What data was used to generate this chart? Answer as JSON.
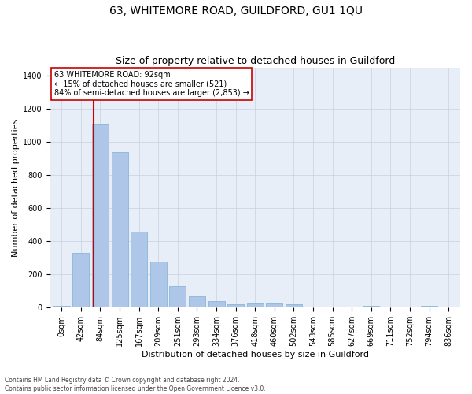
{
  "title": "63, WHITEMORE ROAD, GUILDFORD, GU1 1QU",
  "subtitle": "Size of property relative to detached houses in Guildford",
  "xlabel": "Distribution of detached houses by size in Guildford",
  "ylabel": "Number of detached properties",
  "bar_color": "#aec6e8",
  "bar_edgecolor": "#7aaed4",
  "vline_color": "#cc0000",
  "annotation_text": "63 WHITEMORE ROAD: 92sqm\n← 15% of detached houses are smaller (521)\n84% of semi-detached houses are larger (2,853) →",
  "annotation_box_edgecolor": "#cc0000",
  "background_color": "#e8eef8",
  "categories": [
    "0sqm",
    "42sqm",
    "84sqm",
    "125sqm",
    "167sqm",
    "209sqm",
    "251sqm",
    "293sqm",
    "334sqm",
    "376sqm",
    "418sqm",
    "460sqm",
    "502sqm",
    "543sqm",
    "585sqm",
    "627sqm",
    "669sqm",
    "711sqm",
    "752sqm",
    "794sqm",
    "836sqm"
  ],
  "bar_heights": [
    10,
    330,
    1110,
    940,
    460,
    275,
    130,
    70,
    40,
    22,
    25,
    25,
    20,
    0,
    0,
    0,
    10,
    0,
    0,
    10,
    0
  ],
  "ylim": [
    0,
    1450
  ],
  "yticks": [
    0,
    200,
    400,
    600,
    800,
    1000,
    1200,
    1400
  ],
  "footer": "Contains HM Land Registry data © Crown copyright and database right 2024.\nContains public sector information licensed under the Open Government Licence v3.0.",
  "grid_color": "#c8d0e0",
  "title_fontsize": 10,
  "subtitle_fontsize": 9,
  "tick_fontsize": 7,
  "ylabel_fontsize": 8,
  "xlabel_fontsize": 8,
  "annotation_fontsize": 7,
  "footer_fontsize": 5.5
}
